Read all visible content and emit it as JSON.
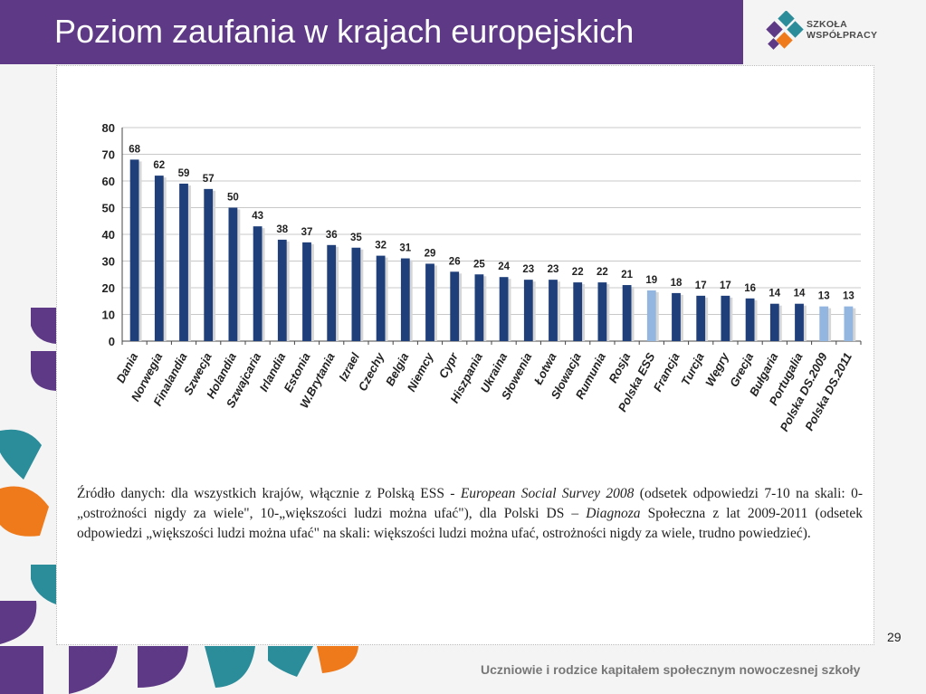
{
  "slide": {
    "title": "Poziom zaufania w krajach europejskich",
    "page_number": "29",
    "footer": "Uczniowie i rodzice kapitałem społecznym nowoczesnej szkoły"
  },
  "logo": {
    "line1": "SZKOŁA",
    "line2": "WSPÓŁPRACY",
    "icon": "puzzle-flower-logo"
  },
  "colors": {
    "title_bar": "#5e3985",
    "bar_main": "#1f3f7a",
    "bar_highlight": "#93b6e0",
    "deco_purple": "#5e3985",
    "deco_teal": "#2b8c9a",
    "deco_orange": "#ef7a1c"
  },
  "chart_data": {
    "type": "bar",
    "title": "",
    "xlabel": "",
    "ylabel": "",
    "ylim": [
      0,
      80
    ],
    "yticks": [
      0,
      10,
      20,
      30,
      40,
      50,
      60,
      70,
      80
    ],
    "grid": true,
    "legend": "none",
    "categories": [
      "Dania",
      "Norwegia",
      "Finalandia",
      "Szwecja",
      "Holandia",
      "Szwajcaria",
      "Irlandia",
      "Estonia",
      "W.Brytania",
      "Izrael",
      "Czechy",
      "Belgia",
      "Niemcy",
      "Cypr",
      "Hiszpania",
      "Ukraina",
      "Słowenia",
      "Łotwa",
      "Słowacja",
      "Rumunia",
      "Rosja",
      "Polska ESS",
      "Francja",
      "Turcja",
      "Węgry",
      "Grecja",
      "Bułgaria",
      "Portugalia",
      "Polska DS.2009",
      "Polska DS.2011"
    ],
    "values": [
      68,
      62,
      59,
      57,
      50,
      43,
      38,
      37,
      36,
      35,
      32,
      31,
      29,
      26,
      25,
      24,
      23,
      23,
      22,
      22,
      21,
      19,
      18,
      17,
      17,
      16,
      14,
      14,
      13,
      13
    ],
    "highlighted": [
      "Polska ESS",
      "Polska DS.2009",
      "Polska DS.2011"
    ]
  },
  "caption": {
    "p1": "Źródło danych: dla wszystkich krajów, włącznie z Polską ESS - ",
    "p2": "European Social Survey 2008",
    "p3": " (odsetek odpowiedzi 7-10 na skali: 0-„ostrożności nigdy za wiele\", 10-„większości ludzi można ufać\"), dla Polski DS – ",
    "p4": "Diagnoza",
    "p5": " Społeczna z lat 2009-2011 (odsetek odpowiedzi „większości ludzi można ufać\" na skali: większości ludzi można ufać, ostrożności nigdy za wiele, trudno powiedzieć)."
  }
}
